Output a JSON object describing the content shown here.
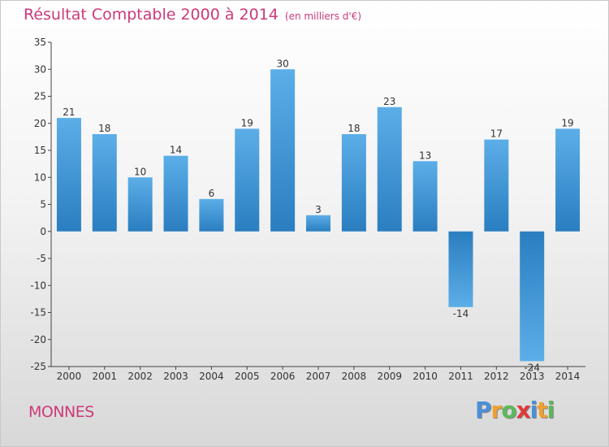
{
  "chart_data": {
    "type": "bar",
    "title": "Résultat Comptable 2000 à 2014",
    "subtitle": "(en milliers d'€)",
    "categories": [
      "2000",
      "2001",
      "2002",
      "2003",
      "2004",
      "2005",
      "2006",
      "2007",
      "2008",
      "2009",
      "2010",
      "2011",
      "2012",
      "2013",
      "2014"
    ],
    "values": [
      21,
      18,
      10,
      14,
      6,
      19,
      30,
      3,
      18,
      23,
      13,
      -14,
      17,
      -24,
      19
    ],
    "ylim": [
      -25,
      35
    ],
    "yticks": [
      35,
      30,
      25,
      20,
      15,
      10,
      5,
      0,
      -5,
      -10,
      -15,
      -20,
      -25
    ],
    "xlabel": "",
    "ylabel": "",
    "grid": false,
    "legend": "none"
  },
  "footer": {
    "city": "MONNES",
    "brand_letters": [
      {
        "char": "P",
        "color": "#4a8fd8"
      },
      {
        "char": "r",
        "color": "#f0a030"
      },
      {
        "char": "o",
        "color": "#5cb85c"
      },
      {
        "char": "x",
        "color": "#e03a3a"
      },
      {
        "char": "i",
        "color": "#4a8fd8"
      },
      {
        "char": "t",
        "color": "#f0a030"
      },
      {
        "char": "i",
        "color": "#5cb85c"
      }
    ]
  },
  "colors": {
    "title": "#cc3a7a",
    "bar_light": "#5caee8",
    "bar_dark": "#2a7ec0"
  }
}
